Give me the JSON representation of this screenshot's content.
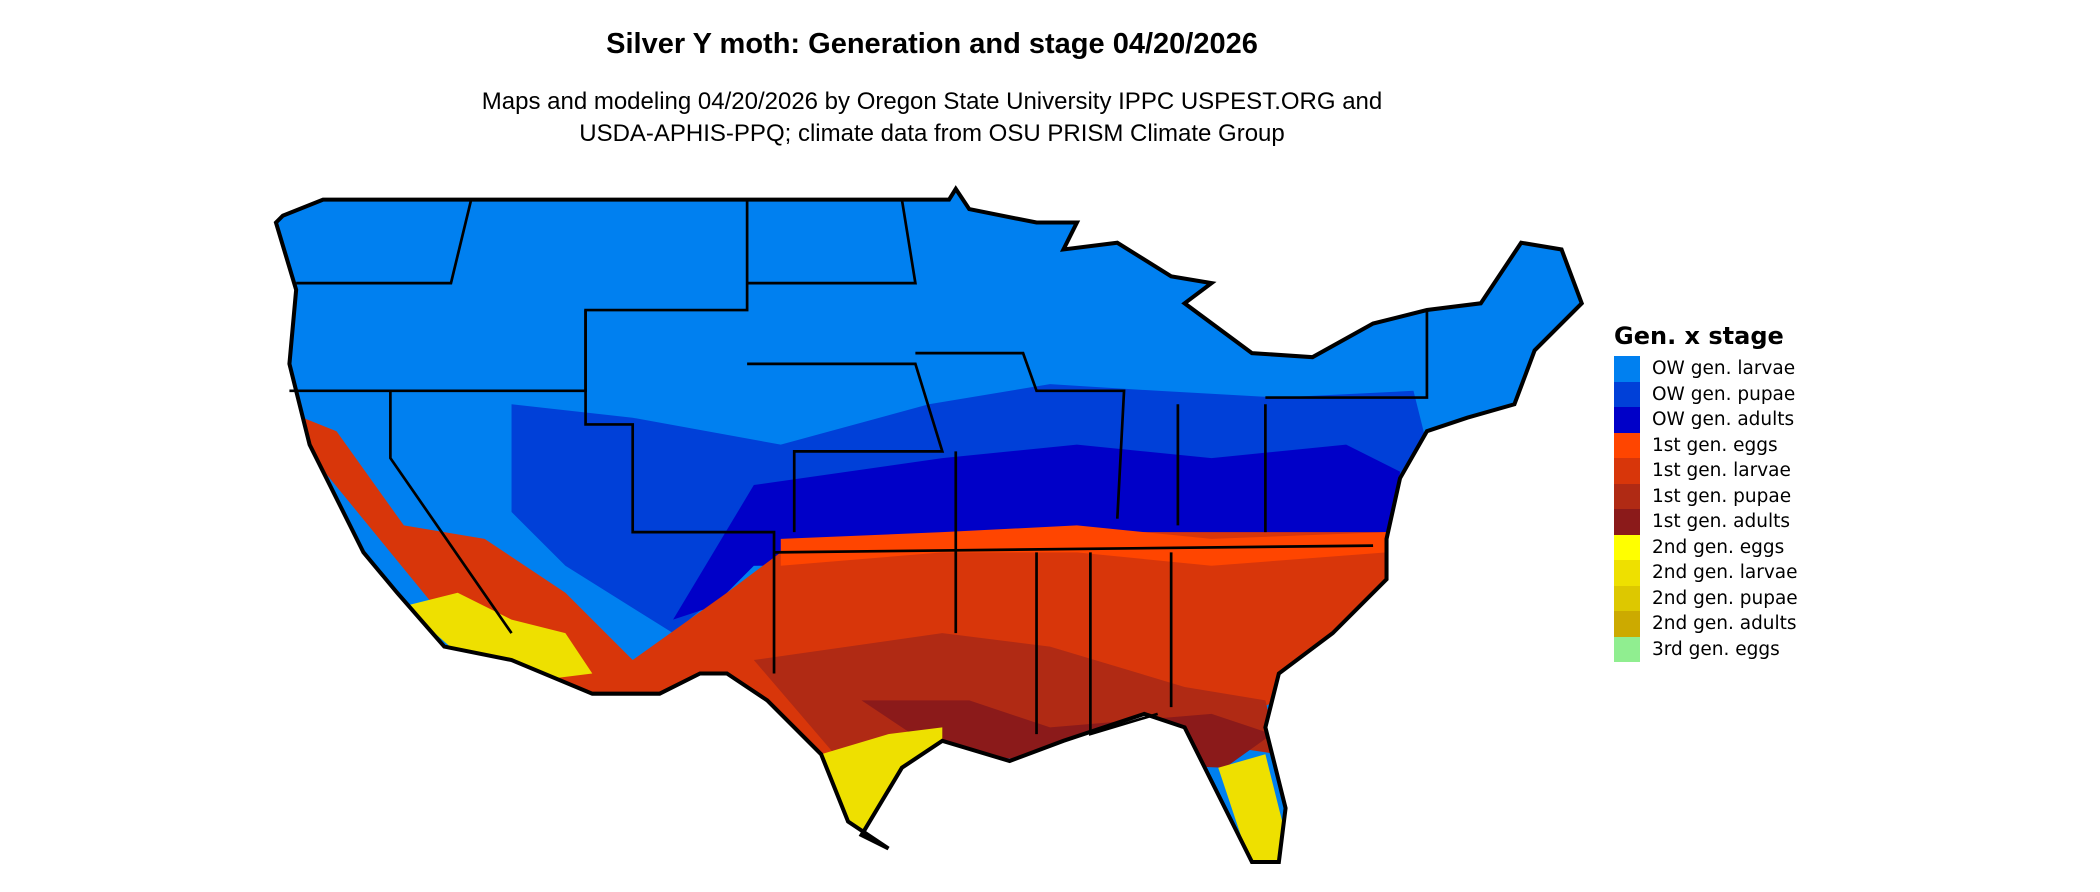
{
  "title": "Silver Y moth: Generation and stage 04/20/2026",
  "subtitle_line1": "Maps and modeling 04/20/2026 by Oregon State University IPPC USPEST.ORG and",
  "subtitle_line2": "USDA-APHIS-PPQ; climate data from OSU PRISM Climate Group",
  "legend": {
    "title": "Gen. x stage",
    "items": [
      {
        "label": "OW gen. larvae",
        "color": "#0080F0"
      },
      {
        "label": "OW gen. pupae",
        "color": "#0040D8"
      },
      {
        "label": "OW gen. adults",
        "color": "#0000C8"
      },
      {
        "label": "1st gen. eggs",
        "color": "#FF4500"
      },
      {
        "label": "1st gen. larvae",
        "color": "#D8360A"
      },
      {
        "label": "1st gen. pupae",
        "color": "#B02A14"
      },
      {
        "label": "1st gen. adults",
        "color": "#8B1A1A"
      },
      {
        "label": "2nd gen. eggs",
        "color": "#FFFF00"
      },
      {
        "label": "2nd gen. larvae",
        "color": "#EEE000"
      },
      {
        "label": "2nd gen. pupae",
        "color": "#DDC800"
      },
      {
        "label": "2nd gen. adults",
        "color": "#CCAA00"
      },
      {
        "label": "3rd gen. eggs",
        "color": "#90EE90"
      }
    ]
  }
}
